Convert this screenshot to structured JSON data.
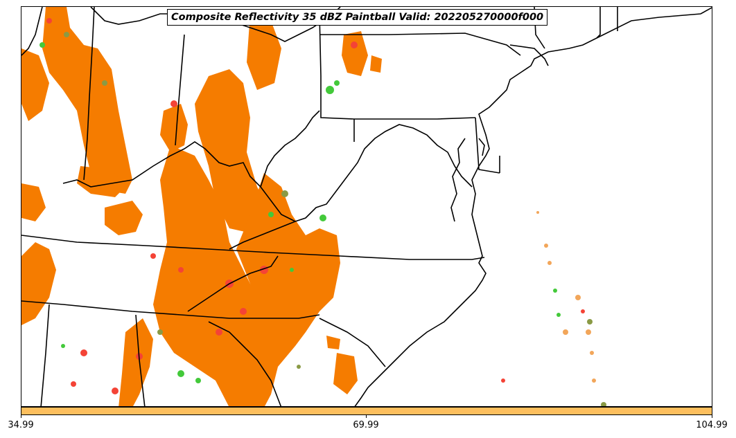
{
  "title": "Composite Reflectivity 35 dBZ Paintball Valid: 202205270000f000",
  "colorbar": {
    "color": "#fdbf5e",
    "tick_labels": [
      "34.99",
      "69.99",
      "104.99"
    ]
  },
  "colors": {
    "orange": "#f57c00",
    "red": "#f44336",
    "green": "#43c93a",
    "olive": "#8a9a45",
    "tan": "#f2a65a",
    "outline": "#000000"
  }
}
